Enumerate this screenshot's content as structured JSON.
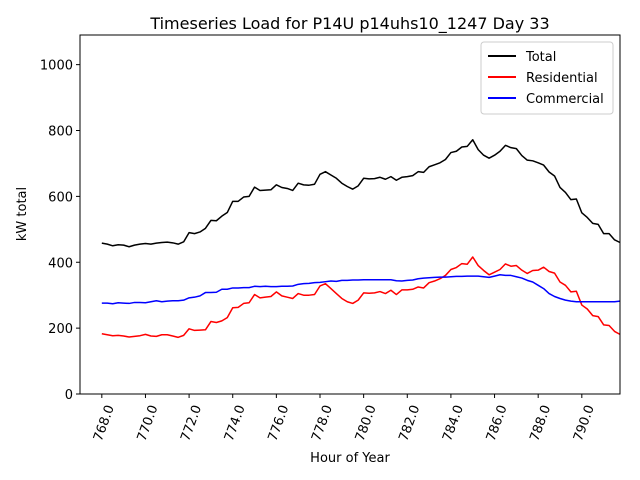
{
  "chart_data": {
    "type": "line",
    "title": "Timeseries Load for P14U p14uhs10_1247  Day 33",
    "xlabel": "Hour of Year",
    "ylabel": "kW total",
    "xlim": [
      767.0,
      791.75
    ],
    "ylim": [
      0,
      1090
    ],
    "x_ticks": [
      "768.0",
      "770.0",
      "772.0",
      "774.0",
      "776.0",
      "778.0",
      "780.0",
      "782.0",
      "784.0",
      "786.0",
      "788.0",
      "790.0"
    ],
    "x_tick_values": [
      768,
      770,
      772,
      774,
      776,
      778,
      780,
      782,
      784,
      786,
      788,
      790
    ],
    "y_ticks": [
      "0",
      "200",
      "400",
      "600",
      "800",
      "1000"
    ],
    "y_tick_values": [
      0,
      200,
      400,
      600,
      800,
      1000
    ],
    "legend_position": "top-right",
    "x_start": 768.0,
    "x_step": 0.25,
    "series": [
      {
        "name": "Total",
        "color": "#000000",
        "values": [
          458,
          455,
          450,
          453,
          452,
          447,
          452,
          455,
          457,
          455,
          458,
          460,
          461,
          459,
          455,
          462,
          490,
          487,
          492,
          503,
          527,
          526,
          540,
          551,
          585,
          585,
          598,
          600,
          628,
          618,
          619,
          620,
          635,
          627,
          624,
          618,
          640,
          635,
          634,
          637,
          667,
          675,
          665,
          655,
          640,
          630,
          622,
          632,
          655,
          653,
          654,
          658,
          652,
          660,
          649,
          658,
          660,
          663,
          675,
          673,
          690,
          696,
          702,
          712,
          733,
          737,
          750,
          752,
          772,
          742,
          725,
          716,
          725,
          737,
          755,
          748,
          745,
          724,
          710,
          708,
          702,
          695,
          674,
          662,
          627,
          612,
          590,
          592,
          550,
          536,
          518,
          515,
          487,
          487,
          468,
          460
        ]
      },
      {
        "name": "Residential",
        "color": "#ff0000",
        "values": [
          183,
          180,
          177,
          178,
          176,
          173,
          175,
          177,
          181,
          176,
          175,
          180,
          180,
          176,
          172,
          178,
          198,
          193,
          194,
          195,
          220,
          217,
          222,
          232,
          262,
          263,
          275,
          277,
          302,
          292,
          294,
          296,
          310,
          298,
          294,
          290,
          305,
          300,
          300,
          302,
          328,
          335,
          320,
          305,
          290,
          280,
          275,
          285,
          307,
          306,
          307,
          311,
          305,
          315,
          302,
          316,
          316,
          318,
          325,
          322,
          338,
          343,
          350,
          360,
          378,
          384,
          396,
          394,
          416,
          390,
          375,
          362,
          370,
          378,
          395,
          388,
          390,
          376,
          366,
          375,
          376,
          385,
          372,
          367,
          340,
          330,
          310,
          312,
          270,
          258,
          238,
          235,
          210,
          208,
          190,
          181
        ]
      },
      {
        "name": "Commercial",
        "color": "#0000ff",
        "values": [
          276,
          276,
          274,
          277,
          276,
          275,
          278,
          278,
          277,
          280,
          283,
          280,
          282,
          283,
          283,
          285,
          292,
          294,
          298,
          308,
          308,
          309,
          318,
          318,
          322,
          322,
          323,
          323,
          327,
          326,
          327,
          326,
          326,
          327,
          327,
          328,
          333,
          335,
          336,
          338,
          339,
          341,
          343,
          342,
          345,
          345,
          346,
          346,
          347,
          347,
          347,
          347,
          347,
          347,
          344,
          343,
          345,
          346,
          350,
          352,
          353,
          354,
          355,
          355,
          356,
          357,
          357,
          358,
          358,
          358,
          356,
          354,
          358,
          362,
          360,
          360,
          356,
          352,
          345,
          340,
          330,
          320,
          305,
          296,
          290,
          285,
          282,
          280,
          280,
          280,
          280,
          280,
          280,
          280,
          280,
          282
        ]
      }
    ]
  }
}
